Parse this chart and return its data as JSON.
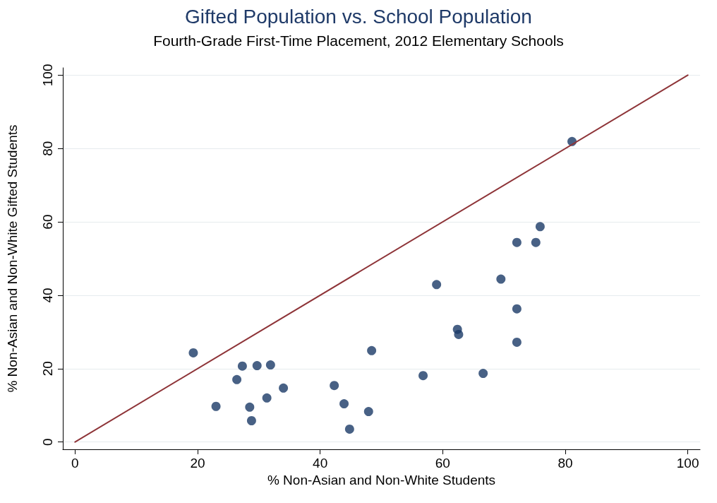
{
  "chart_data": {
    "type": "scatter",
    "title": "Gifted Population vs. School Population",
    "subtitle": "Fourth-Grade First-Time Placement, 2012 Elementary Schools",
    "xlabel": "% Non-Asian and Non-White Students",
    "ylabel": "% Non-Asian and Non-White Gifted Students",
    "xlim": [
      -2,
      102
    ],
    "ylim": [
      -2,
      102
    ],
    "xticks": [
      0,
      20,
      40,
      60,
      80,
      100
    ],
    "yticks": [
      0,
      20,
      40,
      60,
      80,
      100
    ],
    "grid": "y",
    "marker": "circle",
    "series": [
      {
        "color": "#1a3a66",
        "x": [
          19.3,
          23.0,
          26.4,
          27.3,
          28.5,
          28.8,
          29.7,
          31.3,
          31.9,
          34.0,
          42.3,
          43.9,
          44.8,
          47.9,
          48.4,
          56.8,
          59.0,
          62.4,
          62.6,
          66.6,
          69.5,
          72.1,
          72.1,
          72.1,
          75.2,
          75.9,
          81.1
        ],
        "values": [
          24.3,
          9.7,
          17.0,
          20.7,
          9.5,
          5.8,
          20.8,
          12.0,
          21.0,
          14.7,
          15.4,
          10.4,
          3.5,
          8.3,
          24.9,
          18.1,
          42.9,
          30.7,
          29.3,
          18.7,
          44.4,
          54.4,
          36.3,
          27.2,
          54.4,
          58.7,
          81.9
        ]
      },
      {
        "type": "line",
        "color": "#8e3438",
        "x": [
          0,
          100
        ],
        "values": [
          0,
          100
        ],
        "marker": "none"
      }
    ]
  }
}
